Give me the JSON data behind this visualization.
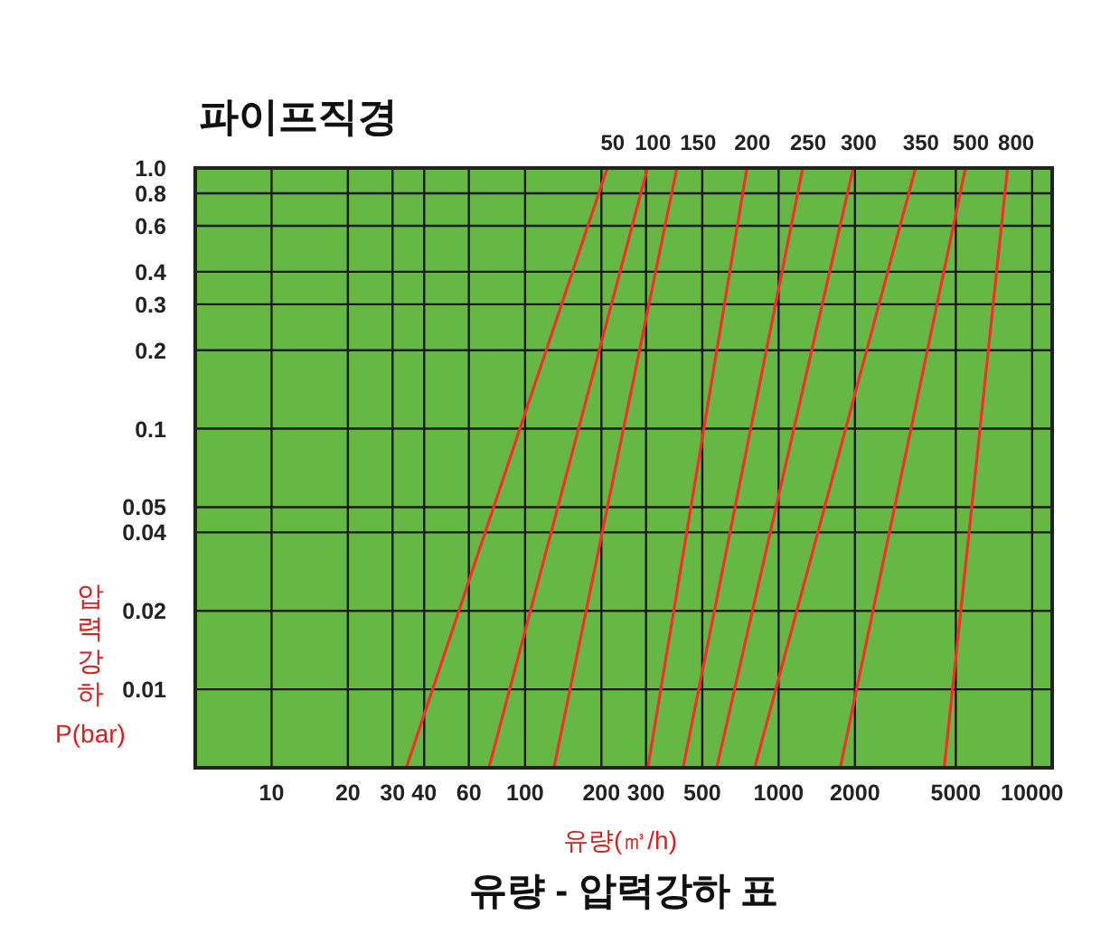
{
  "chart_data": {
    "type": "line",
    "title": "유량 - 압력강하 표",
    "legend_title": "파이프직경",
    "xlabel": "유량(㎥/h)",
    "ylabel": "압력강하 P(bar)",
    "log": "xy",
    "grid": true,
    "line_style": "solid",
    "xlim": [
      5,
      12000
    ],
    "xticks": [
      10,
      20,
      30,
      40,
      60,
      100,
      200,
      300,
      500,
      1000,
      2000,
      5000,
      10000
    ],
    "ylim": [
      0.005,
      1
    ],
    "yticks": [
      {
        "value": 1,
        "label": "1.0"
      },
      0.8,
      0.6,
      0.4,
      0.3,
      0.2,
      0.1,
      0.05,
      0.04,
      0.02,
      0.01
    ],
    "series": [
      {
        "name": "50",
        "color": "#ff2a2a",
        "x": [
          34,
          211
        ],
        "values": [
          0.005,
          1
        ]
      },
      {
        "name": "100",
        "color": "#ff2a2a",
        "x": [
          72,
          304
        ],
        "values": [
          0.005,
          1
        ]
      },
      {
        "name": "150",
        "color": "#ff2a2a",
        "x": [
          130,
          397
        ],
        "values": [
          0.005,
          1
        ]
      },
      {
        "name": "200",
        "color": "#ff2a2a",
        "x": [
          305,
          750
        ],
        "values": [
          0.005,
          1
        ]
      },
      {
        "name": "250",
        "color": "#ff2a2a",
        "x": [
          420,
          1245
        ],
        "values": [
          0.005,
          1
        ]
      },
      {
        "name": "300",
        "color": "#ff2a2a",
        "x": [
          570,
          1970
        ],
        "values": [
          0.005,
          1
        ]
      },
      {
        "name": "350",
        "color": "#ff2a2a",
        "x": [
          805,
          3470
        ],
        "values": [
          0.005,
          1
        ]
      },
      {
        "name": "500",
        "color": "#ff2a2a",
        "x": [
          1750,
          5460
        ],
        "values": [
          0.005,
          1
        ]
      },
      {
        "name": "800",
        "color": "#ff2a2a",
        "x": [
          4500,
          8000
        ],
        "values": [
          0.005,
          1
        ]
      }
    ]
  }
}
